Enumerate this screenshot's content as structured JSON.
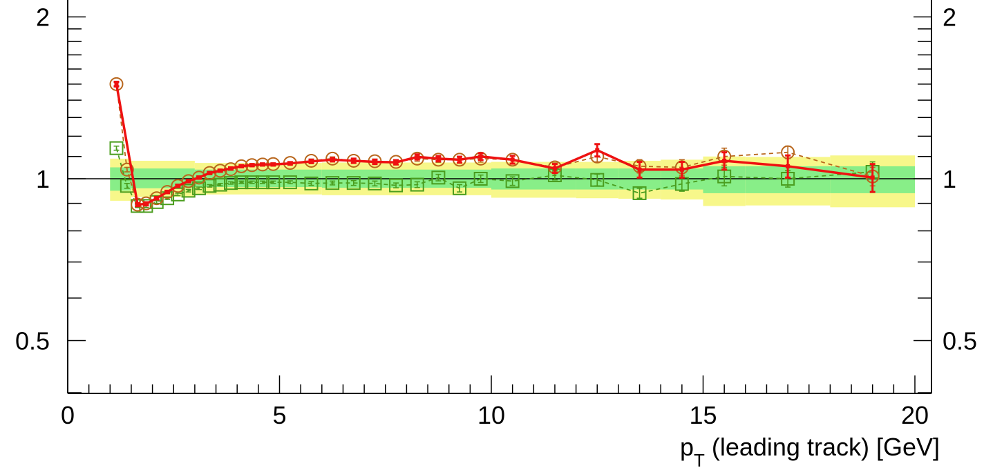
{
  "chart_data": {
    "type": "line",
    "title": "",
    "xlabel": "p_T (leading track) [GeV]",
    "xlabel_main": "p",
    "xlabel_sub": "T",
    "xlabel_rest": " (leading track) [GeV]",
    "ylabel": "",
    "xlim": [
      0,
      20.4
    ],
    "ylim": [
      0.35,
      2.1
    ],
    "yscale": "log",
    "grid": false,
    "x_ticks": [
      "0",
      "5",
      "10",
      "15",
      "20"
    ],
    "y_ticks": [
      "0.5",
      "1",
      "2"
    ],
    "y_ticks_right": [
      "0.5",
      "1",
      "2"
    ],
    "reference_line": 1,
    "colors": {
      "red": "#ee1111",
      "brown": "#b8661c",
      "green": "#4a9d1e",
      "band_inner": "#88ee88",
      "band_outer": "#f7f78a"
    },
    "bands": [
      {
        "x0": 1.0,
        "x1": 1.5,
        "inner": [
          0.95,
          1.05
        ],
        "outer": [
          0.91,
          1.09
        ]
      },
      {
        "x0": 1.5,
        "x1": 3.0,
        "inner": [
          0.96,
          1.045
        ],
        "outer": [
          0.925,
          1.08
        ]
      },
      {
        "x0": 3.0,
        "x1": 6.0,
        "inner": [
          0.965,
          1.04
        ],
        "outer": [
          0.935,
          1.07
        ]
      },
      {
        "x0": 6.0,
        "x1": 10.0,
        "inner": [
          0.962,
          1.04
        ],
        "outer": [
          0.932,
          1.072
        ]
      },
      {
        "x0": 10.0,
        "x1": 12.0,
        "inner": [
          0.955,
          1.045
        ],
        "outer": [
          0.922,
          1.075
        ]
      },
      {
        "x0": 12.0,
        "x1": 13.0,
        "inner": [
          0.955,
          1.045
        ],
        "outer": [
          0.92,
          1.075
        ]
      },
      {
        "x0": 13.0,
        "x1": 14.0,
        "inner": [
          0.955,
          1.045
        ],
        "outer": [
          0.918,
          1.08
        ]
      },
      {
        "x0": 14.0,
        "x1": 15.0,
        "inner": [
          0.955,
          1.045
        ],
        "outer": [
          0.915,
          1.085
        ]
      },
      {
        "x0": 15.0,
        "x1": 16.0,
        "inner": [
          0.94,
          1.055
        ],
        "outer": [
          0.89,
          1.1
        ]
      },
      {
        "x0": 16.0,
        "x1": 18.0,
        "inner": [
          0.94,
          1.055
        ],
        "outer": [
          0.892,
          1.098
        ]
      },
      {
        "x0": 18.0,
        "x1": 20.0,
        "inner": [
          0.94,
          1.055
        ],
        "outer": [
          0.885,
          1.105
        ]
      }
    ],
    "series": [
      {
        "color": "red",
        "style": "solid-line",
        "x": [
          1.15,
          1.65,
          1.85,
          2.1,
          2.35,
          2.6,
          2.85,
          3.1,
          3.35,
          3.6,
          3.85,
          4.1,
          4.35,
          4.6,
          4.85,
          5.25,
          5.75,
          6.25,
          6.75,
          7.25,
          7.75,
          8.25,
          8.75,
          9.25,
          9.75,
          10.5,
          11.5,
          12.5,
          13.5,
          14.5,
          15.5,
          17.0,
          19.0
        ],
        "y": [
          1.5,
          0.895,
          0.898,
          0.92,
          0.945,
          0.97,
          0.99,
          1.005,
          1.025,
          1.035,
          1.045,
          1.055,
          1.06,
          1.063,
          1.063,
          1.068,
          1.077,
          1.085,
          1.08,
          1.075,
          1.073,
          1.098,
          1.09,
          1.085,
          1.1,
          1.085,
          1.045,
          1.13,
          1.04,
          1.04,
          1.08,
          1.055,
          1.005
        ],
        "err": [
          0.015,
          0.006,
          0.006,
          0.005,
          0.005,
          0.005,
          0.005,
          0.005,
          0.005,
          0.005,
          0.005,
          0.005,
          0.005,
          0.005,
          0.005,
          0.006,
          0.008,
          0.008,
          0.01,
          0.01,
          0.01,
          0.012,
          0.012,
          0.014,
          0.016,
          0.018,
          0.02,
          0.03,
          0.035,
          0.035,
          0.04,
          0.05,
          0.06
        ]
      },
      {
        "color": "brown",
        "style": "dashed-line",
        "marker": "circle",
        "x": [
          1.15,
          1.4,
          1.65,
          1.85,
          2.1,
          2.35,
          2.6,
          2.85,
          3.1,
          3.35,
          3.6,
          3.85,
          4.1,
          4.35,
          4.6,
          4.85,
          5.25,
          5.75,
          6.25,
          6.75,
          7.25,
          7.75,
          8.25,
          8.75,
          9.25,
          9.75,
          10.5,
          11.5,
          12.5,
          13.5,
          14.5,
          15.5,
          17.0,
          19.0
        ],
        "y": [
          1.5,
          1.04,
          0.895,
          0.9,
          0.92,
          0.945,
          0.97,
          0.99,
          1.005,
          1.025,
          1.035,
          1.042,
          1.055,
          1.06,
          1.063,
          1.065,
          1.07,
          1.08,
          1.09,
          1.08,
          1.078,
          1.075,
          1.09,
          1.085,
          1.085,
          1.09,
          1.085,
          1.05,
          1.1,
          1.055,
          1.05,
          1.1,
          1.12,
          1.01
        ],
        "err": [
          0.01,
          0.01,
          0.006,
          0.006,
          0.005,
          0.005,
          0.005,
          0.005,
          0.005,
          0.005,
          0.005,
          0.005,
          0.005,
          0.005,
          0.005,
          0.005,
          0.006,
          0.008,
          0.008,
          0.01,
          0.01,
          0.01,
          0.012,
          0.012,
          0.014,
          0.016,
          0.018,
          0.02,
          0.025,
          0.03,
          0.035,
          0.04,
          0.03,
          0.04
        ]
      },
      {
        "color": "green",
        "style": "dashed-line",
        "marker": "square",
        "x": [
          1.15,
          1.4,
          1.65,
          1.85,
          2.1,
          2.35,
          2.6,
          2.85,
          3.1,
          3.35,
          3.6,
          3.85,
          4.1,
          4.35,
          4.6,
          4.85,
          5.25,
          5.75,
          6.25,
          6.75,
          7.25,
          7.75,
          8.25,
          8.75,
          9.25,
          9.75,
          10.5,
          11.5,
          12.5,
          13.5,
          14.5,
          15.5,
          17.0,
          19.0
        ],
        "y": [
          1.14,
          0.97,
          0.89,
          0.89,
          0.905,
          0.92,
          0.935,
          0.95,
          0.96,
          0.97,
          0.975,
          0.982,
          0.985,
          0.985,
          0.985,
          0.985,
          0.985,
          0.98,
          0.982,
          0.982,
          0.98,
          0.972,
          0.975,
          1.005,
          0.96,
          1.0,
          0.99,
          1.015,
          0.995,
          0.94,
          0.978,
          1.01,
          1.0,
          1.03
        ],
        "err": [
          0.01,
          0.01,
          0.006,
          0.006,
          0.005,
          0.005,
          0.005,
          0.005,
          0.005,
          0.005,
          0.005,
          0.005,
          0.005,
          0.005,
          0.005,
          0.005,
          0.006,
          0.008,
          0.008,
          0.01,
          0.01,
          0.01,
          0.012,
          0.014,
          0.015,
          0.016,
          0.018,
          0.02,
          0.025,
          0.02,
          0.03,
          0.04,
          0.035,
          0.045
        ]
      }
    ]
  }
}
